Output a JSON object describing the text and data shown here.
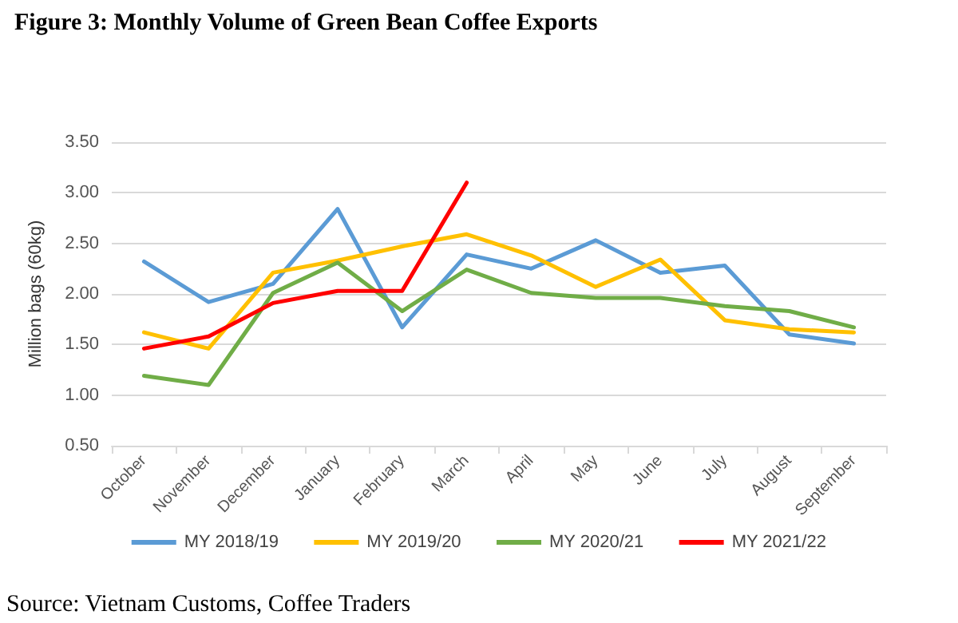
{
  "chart_data": {
    "type": "line",
    "title": "Figure 3: Monthly Volume of Green Bean Coffee Exports",
    "ylabel": "Million bags (60kg)",
    "categories": [
      "October",
      "November",
      "December",
      "January",
      "February",
      "March",
      "April",
      "May",
      "June",
      "July",
      "August",
      "September"
    ],
    "series": [
      {
        "name": "MY 2018/19",
        "color": "#5b9bd5",
        "values": [
          2.32,
          1.92,
          2.1,
          2.84,
          1.67,
          2.39,
          2.25,
          2.53,
          2.21,
          2.28,
          1.6,
          1.51
        ]
      },
      {
        "name": "MY 2019/20",
        "color": "#ffc000",
        "values": [
          1.62,
          1.46,
          2.21,
          2.33,
          2.47,
          2.59,
          2.38,
          2.07,
          2.34,
          1.74,
          1.65,
          1.62
        ]
      },
      {
        "name": "MY 2020/21",
        "color": "#70ad47",
        "values": [
          1.19,
          1.1,
          2.01,
          2.31,
          1.83,
          2.24,
          2.01,
          1.96,
          1.96,
          1.88,
          1.83,
          1.67
        ]
      },
      {
        "name": "MY 2021/22",
        "color": "#ff0000",
        "values": [
          1.46,
          1.58,
          1.91,
          2.03,
          2.03,
          3.1,
          null,
          null,
          null,
          null,
          null,
          null
        ]
      }
    ],
    "ylim": [
      0.5,
      3.5
    ],
    "yticks": [
      {
        "value": 0.5,
        "label": "0.50"
      },
      {
        "value": 1,
        "label": "1.00"
      },
      {
        "value": 1.5,
        "label": "1.50"
      },
      {
        "value": 2,
        "label": "2.00"
      },
      {
        "value": 2.5,
        "label": "2.50"
      },
      {
        "value": 3,
        "label": "3.00"
      },
      {
        "value": 3.5,
        "label": "3.50"
      }
    ],
    "grid": "y",
    "legend": "bottom",
    "marker": "none",
    "line_style": "solid",
    "annotations": [
      "Source: Vietnam Customs, Coffee Traders"
    ]
  }
}
